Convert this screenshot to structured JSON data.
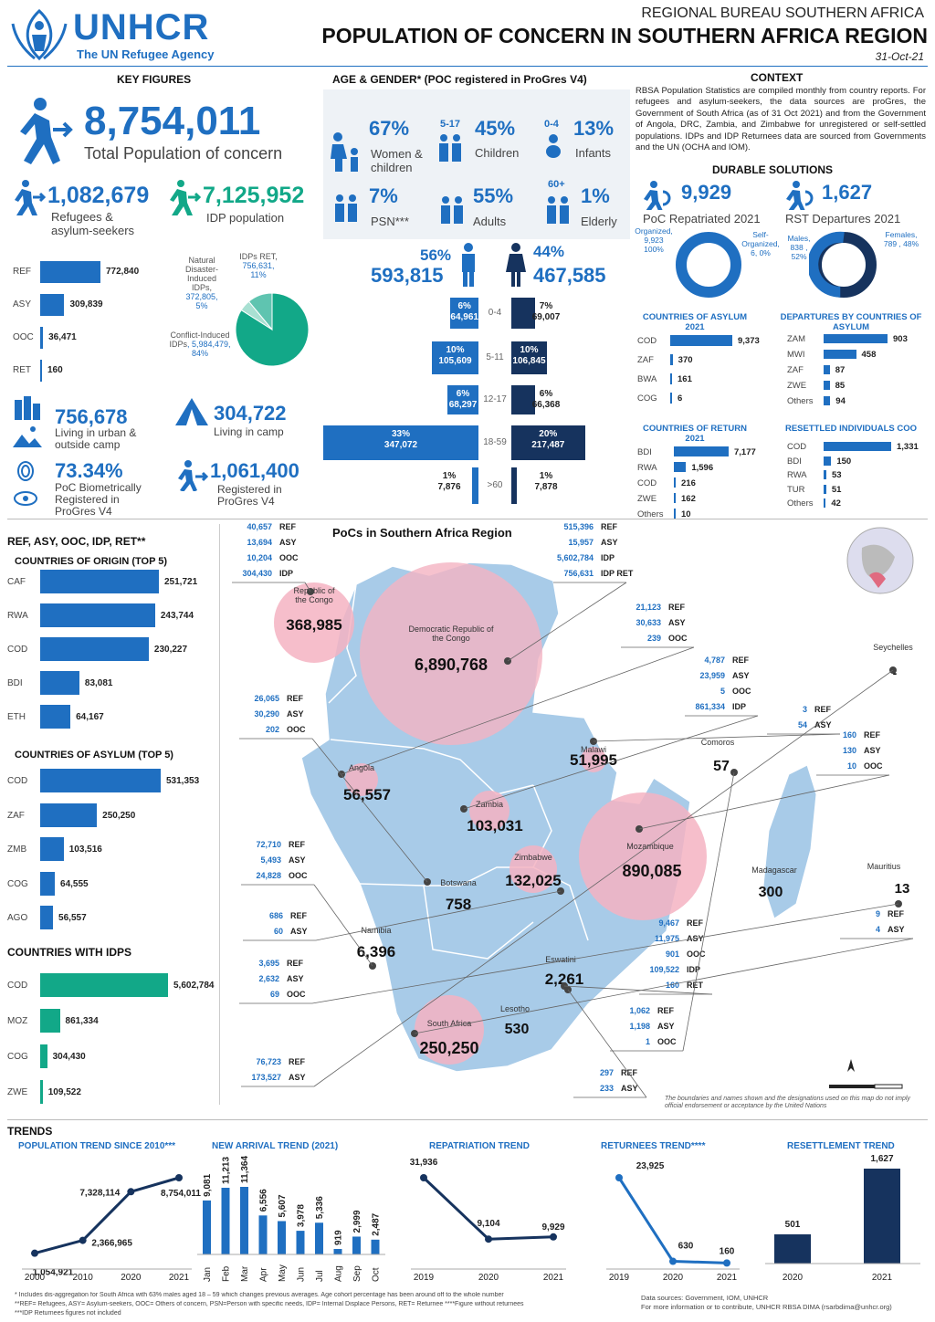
{
  "header": {
    "logo": "UNHCR",
    "tagline": "The UN Refugee Agency",
    "bureau": "REGIONAL BUREAU SOUTHERN AFRICA",
    "title": "POPULATION OF CONCERN IN SOUTHERN AFRICA REGION",
    "date": "31-Oct-21"
  },
  "key": {
    "heading": "KEY FIGURES",
    "total": "8,754,011",
    "total_label": "Total Population of concern",
    "ref_asy": "1,082,679",
    "ref_asy_label1": "Refugees &",
    "ref_asy_label2": "asylum-seekers",
    "idp": "7,125,952",
    "idp_label": "IDP population",
    "bars": [
      {
        "code": "REF",
        "value": 772840,
        "label": "772,840"
      },
      {
        "code": "ASY",
        "value": 309839,
        "label": "309,839"
      },
      {
        "code": "OOC",
        "value": 36471,
        "label": "36,471"
      },
      {
        "code": "RET",
        "value": 160,
        "label": "160"
      }
    ],
    "pie": {
      "nat": "Natural Disaster-Induced IDPs,",
      "nat_v": "372,805,",
      "nat_p": "5%",
      "ret": "IDPs RET,",
      "ret_v": "756,631,",
      "ret_p": "11%",
      "con": "Conflict-Induced IDPs",
      ", con_v": "",
      "con_v": ", 5,984,479,",
      "con_p": "84%",
      "fractions": [
        0.84,
        0.05,
        0.11
      ]
    },
    "urban": "756,678",
    "urban_l1": "Living in urban &",
    "urban_l2": "outside camp",
    "camp": "304,722",
    "camp_l": "Living in camp",
    "bio": "73.34%",
    "bio_l1": "PoC Biometrically",
    "bio_l2": "Registered in",
    "bio_l3": "ProGres V4",
    "reg": "1,061,400",
    "reg_l1": "Registered in",
    "reg_l2": "ProGres V4"
  },
  "age": {
    "heading": "AGE & GENDER* (POC registered in ProGres V4)",
    "women": "67%",
    "women_l1": "Women &",
    "women_l2": "children",
    "children": "45%",
    "children_age": "5-17",
    "children_l": "Children",
    "infants": "13%",
    "infants_age": "0-4",
    "infants_l": "Infants",
    "psn": "7%",
    "psn_l": "PSN***",
    "adults": "55%",
    "adults_l": "Adults",
    "elderly": "1%",
    "elderly_age": "60+",
    "elderly_l": "Elderly",
    "male_p": "56%",
    "male_n": "593,815",
    "female_p": "44%",
    "female_n": "467,585",
    "rows": [
      {
        "age": "0-4",
        "lp": "6%",
        "ln": "64,961",
        "rp": "7%",
        "rn": "69,007",
        "l": 0.18,
        "r": 0.2
      },
      {
        "age": "5-11",
        "lp": "10%",
        "ln": "105,609",
        "rp": "10%",
        "rn": "106,845",
        "l": 0.3,
        "r": 0.3
      },
      {
        "age": "12-17",
        "lp": "6%",
        "ln": "68,297",
        "rp": "6%",
        "rn": "66,368",
        "l": 0.2,
        "r": 0.2
      },
      {
        "age": "18-59",
        "lp": "33%",
        "ln": "347,072",
        "rp": "20%",
        "rn": "217,487",
        "l": 1.0,
        "r": 0.62
      },
      {
        "age": ">60",
        "lp": "1%",
        "ln": "7,876",
        "rp": "1%",
        "rn": "7,878",
        "l": 0.04,
        "r": 0.04
      }
    ]
  },
  "context": {
    "heading": "CONTEXT",
    "text": "RBSA Population Statistics are compiled monthly from country reports. For refugees and asylum-seekers, the data sources are proGres, the Government of South Africa (as of 31 Oct 2021) and from the Government of Angola, DRC, Zambia, and Zimbabwe for unregistered or self-settled populations. IDPs and IDP Returnees data are sourced from Governments and the UN (OCHA and IOM).",
    "durable": "DURABLE SOLUTIONS",
    "rep": "9,929",
    "rep_l": "PoC Repatriated 2021",
    "rst": "1,627",
    "rst_l": "RST Departures 2021",
    "rep_org": "Organized, 9,923 100%",
    "rep_self": "Self-Organized, 6, 0%",
    "rst_m": "Males, 838 , 52%",
    "rst_f": "Females, 789 , 48%",
    "coa_h": "COUNTRIES OF ASYLUM 2021",
    "coa": [
      {
        "c": "COD",
        "v": 9373,
        "l": "9,373"
      },
      {
        "c": "ZAF",
        "v": 370,
        "l": "370"
      },
      {
        "c": "BWA",
        "v": 161,
        "l": "161"
      },
      {
        "c": "COG",
        "v": 6,
        "l": "6"
      }
    ],
    "dep_h": "DEPARTURES BY COUNTRIES OF ASYLUM",
    "dep": [
      {
        "c": "ZAM",
        "v": 903,
        "l": "903"
      },
      {
        "c": "MWI",
        "v": 458,
        "l": "458"
      },
      {
        "c": "ZAF",
        "v": 87,
        "l": "87"
      },
      {
        "c": "ZWE",
        "v": 85,
        "l": "85"
      },
      {
        "c": "Others",
        "v": 94,
        "l": "94"
      }
    ],
    "cor_h": "COUNTRIES OF RETURN 2021",
    "cor": [
      {
        "c": "BDI",
        "v": 7177,
        "l": "7,177"
      },
      {
        "c": "RWA",
        "v": 1596,
        "l": "1,596"
      },
      {
        "c": "COD",
        "v": 216,
        "l": "216"
      },
      {
        "c": "ZWE",
        "v": 162,
        "l": "162"
      },
      {
        "c": "Others",
        "v": 10,
        "l": "10"
      }
    ],
    "res_h": "RESETTLED INDIVIDUALS COO",
    "res": [
      {
        "c": "COD",
        "v": 1331,
        "l": "1,331"
      },
      {
        "c": "BDI",
        "v": 150,
        "l": "150"
      },
      {
        "c": "RWA",
        "v": 53,
        "l": "53"
      },
      {
        "c": "TUR",
        "v": 51,
        "l": "51"
      },
      {
        "c": "Others",
        "v": 42,
        "l": "42"
      }
    ]
  },
  "left": {
    "heading": "REF, ASY, OOC, IDP, RET**",
    "origin_h": "COUNTRIES OF ORIGIN (TOP 5)",
    "origin": [
      {
        "c": "CAF",
        "v": 251721,
        "l": "251,721"
      },
      {
        "c": "RWA",
        "v": 243744,
        "l": "243,744"
      },
      {
        "c": "COD",
        "v": 230227,
        "l": "230,227"
      },
      {
        "c": "BDI",
        "v": 83081,
        "l": "83,081"
      },
      {
        "c": "ETH",
        "v": 64167,
        "l": "64,167"
      }
    ],
    "asylum_h": "COUNTRIES OF ASYLUM (TOP 5)",
    "asylum": [
      {
        "c": "COD",
        "v": 531353,
        "l": "531,353"
      },
      {
        "c": "ZAF",
        "v": 250250,
        "l": "250,250"
      },
      {
        "c": "ZMB",
        "v": 103516,
        "l": "103,516"
      },
      {
        "c": "COG",
        "v": 64555,
        "l": "64,555"
      },
      {
        "c": "AGO",
        "v": 56557,
        "l": "56,557"
      }
    ],
    "idp_h": "COUNTRIES WITH IDPS",
    "idps": [
      {
        "c": "COD",
        "v": 5602784,
        "l": "5,602,784"
      },
      {
        "c": "MOZ",
        "v": 861334,
        "l": "861,334"
      },
      {
        "c": "COG",
        "v": 304430,
        "l": "304,430"
      },
      {
        "c": "ZWE",
        "v": 109522,
        "l": "109,522"
      }
    ]
  },
  "map": {
    "title": "PoCs in Southern Africa Region",
    "disclaimer": "The boundaries and names shown and the designations used on this map do not imply official endorsement or acceptance by the United Nations",
    "countries": [
      {
        "n": "Republic of the Congo",
        "v": "368,985"
      },
      {
        "n": "Democratic Republic of the Congo",
        "v": "6,890,768"
      },
      {
        "n": "Angola",
        "v": "56,557"
      },
      {
        "n": "Zambia",
        "v": "103,031"
      },
      {
        "n": "Malawi",
        "v": "51,995"
      },
      {
        "n": "Mozambique",
        "v": "890,085"
      },
      {
        "n": "Zimbabwe",
        "v": "132,025"
      },
      {
        "n": "Botswana",
        "v": "758"
      },
      {
        "n": "Namibia",
        "v": "6,396"
      },
      {
        "n": "Eswatini",
        "v": "2,261"
      },
      {
        "n": "Lesotho",
        "v": "530"
      },
      {
        "n": "South Africa",
        "v": "250,250"
      },
      {
        "n": "Madagascar",
        "v": "300"
      },
      {
        "n": "Comoros",
        "v": "57"
      },
      {
        "n": "Seychelles",
        "v": "-"
      },
      {
        "n": "Mauritius",
        "v": "13"
      }
    ],
    "legends": [
      [
        [
          "40,657",
          "REF"
        ],
        [
          "13,694",
          "ASY"
        ],
        [
          "10,204",
          "OOC"
        ],
        [
          "304,430",
          "IDP"
        ]
      ],
      [
        [
          "515,396",
          "REF"
        ],
        [
          "15,957",
          "ASY"
        ],
        [
          "5,602,784",
          "IDP"
        ],
        [
          "756,631",
          "IDP RET"
        ]
      ],
      [
        [
          "21,123",
          "REF"
        ],
        [
          "30,633",
          "ASY"
        ],
        [
          "239",
          "OOC"
        ]
      ],
      [
        [
          "4,787",
          "REF"
        ],
        [
          "23,959",
          "ASY"
        ],
        [
          "5",
          "OOC"
        ],
        [
          "861,334",
          "IDP"
        ]
      ],
      [
        [
          "3",
          "REF"
        ],
        [
          "54",
          "ASY"
        ]
      ],
      [
        [
          "160",
          "REF"
        ],
        [
          "130",
          "ASY"
        ],
        [
          "10",
          "OOC"
        ]
      ],
      [
        [
          "26,065",
          "REF"
        ],
        [
          "30,290",
          "ASY"
        ],
        [
          "202",
          "OOC"
        ]
      ],
      [
        [
          "72,710",
          "REF"
        ],
        [
          "5,493",
          "ASY"
        ],
        [
          "24,828",
          "OOC"
        ]
      ],
      [
        [
          "686",
          "REF"
        ],
        [
          "60",
          "ASY"
        ]
      ],
      [
        [
          "3,695",
          "REF"
        ],
        [
          "2,632",
          "ASY"
        ],
        [
          "69",
          "OOC"
        ]
      ],
      [
        [
          "9,467",
          "REF"
        ],
        [
          "11,975",
          "ASY"
        ],
        [
          "901",
          "OOC"
        ],
        [
          "109,522",
          "IDP"
        ],
        [
          "160",
          "RET"
        ]
      ],
      [
        [
          "9",
          "REF"
        ],
        [
          "4",
          "ASY"
        ]
      ],
      [
        [
          "1,062",
          "REF"
        ],
        [
          "1,198",
          "ASY"
        ],
        [
          "1",
          "OOC"
        ]
      ],
      [
        [
          "76,723",
          "REF"
        ],
        [
          "173,527",
          "ASY"
        ]
      ],
      [
        [
          "297",
          "REF"
        ],
        [
          "233",
          "ASY"
        ]
      ]
    ]
  },
  "trends": {
    "heading": "TRENDS",
    "pop_h": "POPULATION TREND SINCE 2010***",
    "pop": {
      "x": [
        "2000",
        "2010",
        "2020",
        "2021"
      ],
      "v": [
        1054921,
        2366965,
        7328114,
        8754011
      ],
      "l": [
        "1,054,921",
        "2,366,965",
        "7,328,114",
        "8,754,011"
      ]
    },
    "arr_h": "NEW ARRIVAL TREND (2021)",
    "arr": {
      "x": [
        "Jan",
        "Feb",
        "Mar",
        "Apr",
        "May",
        "Jun",
        "Jul",
        "Aug",
        "Sep",
        "Oct"
      ],
      "v": [
        9081,
        11213,
        11364,
        6556,
        5607,
        3978,
        5336,
        919,
        2999,
        2487
      ],
      "l": [
        "9,081",
        "11,213",
        "11,364",
        "6,556",
        "5,607",
        "3,978",
        "5,336",
        "919",
        "2,999",
        "2,487"
      ]
    },
    "rep_h": "REPATRIATION TREND",
    "rep": {
      "x": [
        "2019",
        "2020",
        "2021"
      ],
      "v": [
        31936,
        9104,
        9929
      ],
      "l": [
        "31,936",
        "9,104",
        "9,929"
      ]
    },
    "ret_h": "RETURNEES TREND****",
    "ret": {
      "x": [
        "2019",
        "2020",
        "2021"
      ],
      "v": [
        23925,
        630,
        160
      ],
      "l": [
        "23,925",
        "630",
        "160"
      ]
    },
    "rst_h": "RESETTLEMENT TREND",
    "rst": {
      "x": [
        "2020",
        "2021"
      ],
      "v": [
        501,
        1627
      ],
      "l": [
        "501",
        "1,627"
      ]
    }
  },
  "footer": {
    "notes1": "* Includes dis-aggregation for South Africa with 63% males aged 18 – 59 which changes previous averages. Age cohort percentage has been around off to the whole number",
    "notes2": "**REF= Refugees, ASY= Asylum-seekers, OOC= Others of concern, PSN=Person with specific needs, IDP= Internal Displace Persons, RET= Returnee        ****Figure without returnees",
    "notes3": "***IDP Returnees figures not included",
    "src1": "Data sources: Government, IOM, UNHCR",
    "src2": "For more information or to contribute, UNHCR RBSA DIMA (rsarbdima@unhcr.org)"
  }
}
